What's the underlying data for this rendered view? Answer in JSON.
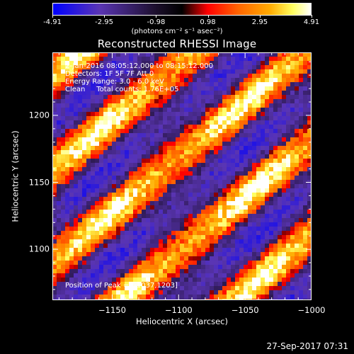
{
  "chart_data": {
    "type": "heatmap",
    "title": "Reconstructed RHESSI Image",
    "xlabel": "Heliocentric X (arcsec)",
    "ylabel": "Heliocentric Y (arcsec)",
    "xlim": [
      -1195,
      -1000
    ],
    "ylim": [
      1062,
      1247
    ],
    "x_ticks": [
      "-1150",
      "-1100",
      "-1050",
      "-1000"
    ],
    "x_tick_values": [
      -1150,
      -1100,
      -1050,
      -1000
    ],
    "y_ticks": [
      "1100",
      "1150",
      "1200"
    ],
    "y_tick_values": [
      1100,
      1150,
      1200
    ],
    "colorbar": {
      "min": -4.91,
      "max": 4.91,
      "tick_labels": [
        "-4.91",
        "-2.95",
        "-0.98",
        "0.98",
        "2.95",
        "4.91"
      ],
      "tick_values": [
        -4.91,
        -2.95,
        -0.98,
        0.98,
        2.95,
        4.91
      ],
      "units": "(photons cm⁻² s⁻¹ asec⁻²)",
      "colors": [
        "#0000ff",
        "#5a35b4",
        "#1c0f2c",
        "#000000",
        "#ff0000",
        "#ff6600",
        "#ffaa00",
        "#ffff60",
        "#ffffff"
      ]
    },
    "annotations": [
      "2-Jan-2016 08:05:12.000 to 08:15:12.000",
      "Detectors: 1F 5F 7F Att 0",
      "Energy Range: 3.0 - 6.0 keV",
      "Clean     Total counts: 1.76E+05"
    ],
    "peak_text": "Position of Peak = [-1037,1203]",
    "peak": [
      -1037,
      1203
    ],
    "pattern": {
      "description_of_values": "diagonal alternating stripes of positive and negative flux",
      "stripe_direction": "lower-left to upper-right",
      "stripe_count_bright": 5
    }
  },
  "timestamp": "27-Sep-2017 07:31"
}
